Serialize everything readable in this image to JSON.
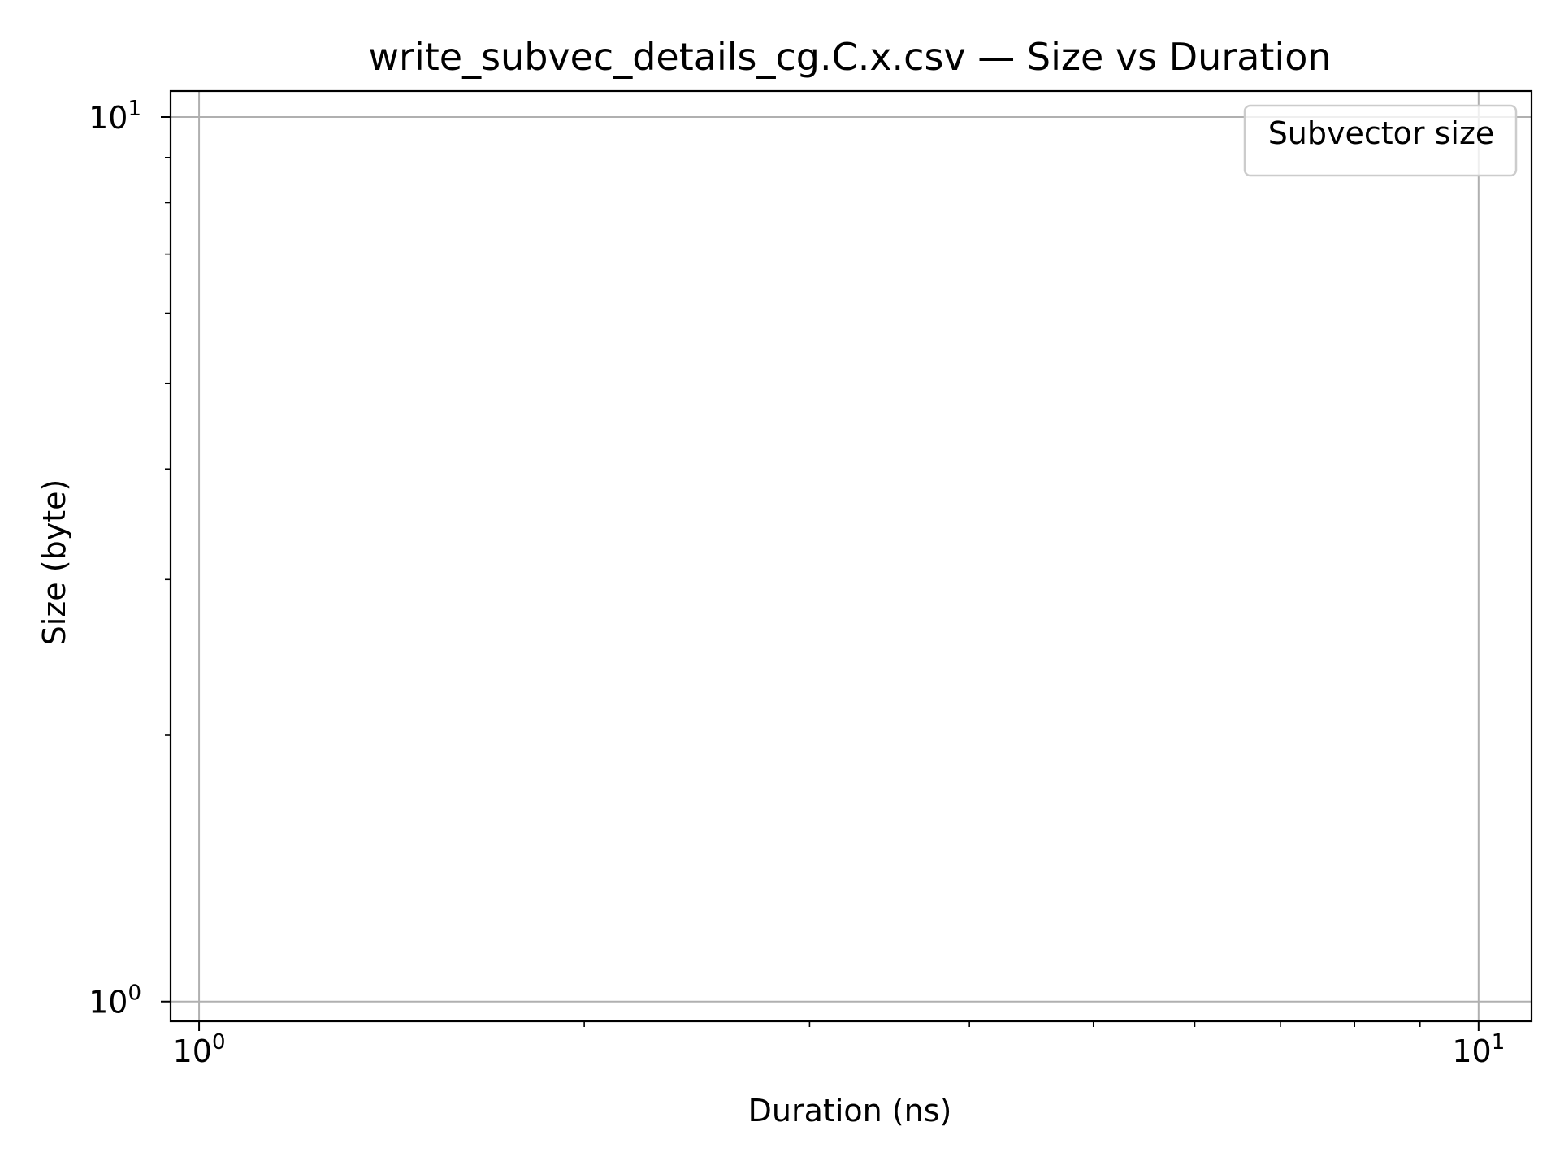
{
  "chart_data": {
    "type": "scatter",
    "title": "write_subvec_details_cg.C.x.csv — Size vs Duration",
    "xlabel": "Duration (ns)",
    "ylabel": "Size (byte)",
    "xscale": "log",
    "yscale": "log",
    "xlim": [
      0.95,
      11
    ],
    "ylim": [
      0.95,
      10.7
    ],
    "x_ticks": [
      {
        "value": 1,
        "base": "10",
        "exp": "0"
      },
      {
        "value": 10,
        "base": "10",
        "exp": "1"
      }
    ],
    "y_ticks": [
      {
        "value": 1,
        "base": "10",
        "exp": "0"
      },
      {
        "value": 10,
        "base": "10",
        "exp": "1"
      }
    ],
    "grid": true,
    "legend": {
      "title": "Subvector size",
      "position": "top-right"
    },
    "series": []
  }
}
